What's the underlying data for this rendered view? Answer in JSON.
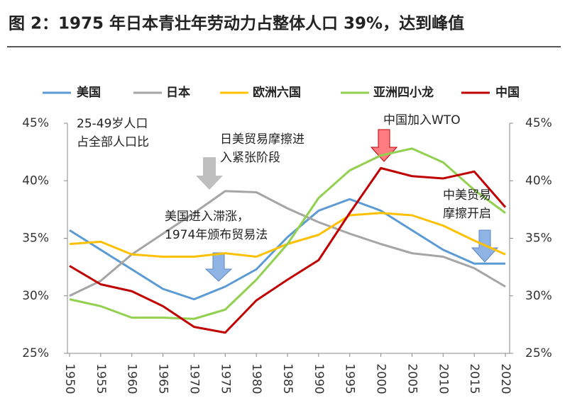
{
  "chart_data": {
    "type": "line",
    "title": "图 2：1975 年日本青壮年劳动力占整体人口 39%，达到峰值",
    "x": [
      1950,
      1955,
      1960,
      1965,
      1970,
      1975,
      1980,
      1985,
      1990,
      1995,
      2000,
      2005,
      2010,
      2015,
      2020
    ],
    "xlim": [
      1950,
      2020
    ],
    "xticks": [
      1950,
      1955,
      1960,
      1965,
      1970,
      1975,
      1980,
      1985,
      1990,
      1995,
      2000,
      2005,
      2010,
      2015,
      2020
    ],
    "ylim": [
      25,
      45
    ],
    "yticks": [
      {
        "value": 25,
        "label": "25%"
      },
      {
        "value": 30,
        "label": "30%"
      },
      {
        "value": 35,
        "label": "35%"
      },
      {
        "value": 40,
        "label": "40%"
      },
      {
        "value": 45,
        "label": "45%"
      }
    ],
    "y2lim": [
      25,
      45
    ],
    "y2ticks": [
      {
        "value": 25,
        "label": "25%"
      },
      {
        "value": 30,
        "label": "30%"
      },
      {
        "value": 35,
        "label": "35%"
      },
      {
        "value": 40,
        "label": "40%"
      },
      {
        "value": 45,
        "label": "45%"
      }
    ],
    "series": [
      {
        "name": "美国",
        "color": "#5b9bd5",
        "values": [
          35.7,
          34.0,
          32.3,
          30.6,
          29.7,
          30.8,
          32.3,
          35.1,
          37.4,
          38.4,
          37.4,
          35.7,
          34.0,
          32.8,
          32.8
        ]
      },
      {
        "name": "日本",
        "color": "#a5a5a5",
        "values": [
          30.0,
          31.3,
          33.6,
          35.4,
          37.2,
          39.1,
          39.0,
          37.6,
          36.4,
          35.4,
          34.5,
          33.7,
          33.4,
          32.4,
          30.8
        ]
      },
      {
        "name": "欧洲六国",
        "color": "#ffc000",
        "values": [
          34.5,
          34.7,
          33.6,
          33.4,
          33.4,
          33.7,
          33.4,
          34.5,
          35.3,
          37.0,
          37.2,
          37.0,
          36.1,
          34.8,
          33.6
        ]
      },
      {
        "name": "亚洲四小龙",
        "color": "#92d050",
        "values": [
          29.7,
          29.1,
          28.1,
          28.1,
          28.0,
          28.8,
          31.4,
          34.5,
          38.5,
          40.9,
          42.2,
          42.8,
          41.6,
          39.2,
          37.2
        ]
      },
      {
        "name": "中国",
        "color": "#c00000",
        "values": [
          32.6,
          31.0,
          30.4,
          29.1,
          27.3,
          26.8,
          29.6,
          31.4,
          33.1,
          37.2,
          41.1,
          40.4,
          40.2,
          40.8,
          37.7
        ]
      }
    ],
    "annotations": [
      {
        "lines": [
          "25-49岁人口",
          "占全部人口比"
        ]
      },
      {
        "lines": [
          "日美贸易摩擦进",
          "入紧张阶段"
        ]
      },
      {
        "lines": [
          "美国进入滞涨，",
          "1974年颁布贸易法"
        ]
      },
      {
        "lines": [
          "中国加入WTO"
        ]
      },
      {
        "lines": [
          "中美贸易",
          "摩擦开启"
        ]
      }
    ]
  }
}
